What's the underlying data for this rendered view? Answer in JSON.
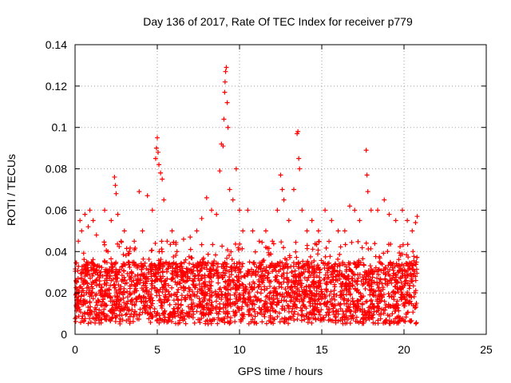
{
  "chart_data": {
    "type": "scatter",
    "title": "Day 136 of 2017, Rate Of TEC Index for receiver p779",
    "xlabel": "GPS time / hours",
    "ylabel": "ROTI / TECUs",
    "xlim": [
      0,
      25
    ],
    "ylim": [
      0,
      0.14
    ],
    "x_ticks": [
      0,
      5,
      10,
      15,
      20,
      25
    ],
    "x_tick_labels": [
      "0",
      "5",
      "10",
      "15",
      "20",
      "25"
    ],
    "y_ticks": [
      0,
      0.02,
      0.04,
      0.06,
      0.08,
      0.1,
      0.12,
      0.14
    ],
    "y_tick_labels": [
      "0",
      "0.02",
      "0.04",
      "0.06",
      "0.08",
      "0.1",
      "0.12",
      "0.14"
    ],
    "grid": true,
    "marker": "plus",
    "color": "#ff0000",
    "series": [
      {
        "points": [
          [
            0.1,
            0.02
          ],
          [
            0.2,
            0.045
          ],
          [
            0.3,
            0.055
          ],
          [
            0.4,
            0.05
          ],
          [
            0.5,
            0.03
          ],
          [
            0.6,
            0.058
          ],
          [
            0.7,
            0.02
          ],
          [
            0.8,
            0.052
          ],
          [
            0.9,
            0.06
          ],
          [
            1.0,
            0.035
          ],
          [
            1.1,
            0.055
          ],
          [
            1.3,
            0.048
          ],
          [
            1.5,
            0.03
          ],
          [
            1.8,
            0.06
          ],
          [
            2.0,
            0.04
          ],
          [
            2.2,
            0.055
          ],
          [
            2.4,
            0.076
          ],
          [
            2.45,
            0.072
          ],
          [
            2.5,
            0.068
          ],
          [
            2.6,
            0.058
          ],
          [
            2.8,
            0.045
          ],
          [
            3.0,
            0.05
          ],
          [
            3.3,
            0.04
          ],
          [
            3.6,
            0.045
          ],
          [
            3.9,
            0.069
          ],
          [
            4.1,
            0.05
          ],
          [
            4.4,
            0.067
          ],
          [
            4.7,
            0.06
          ],
          [
            4.9,
            0.085
          ],
          [
            4.95,
            0.09
          ],
          [
            5.0,
            0.095
          ],
          [
            5.05,
            0.088
          ],
          [
            5.1,
            0.082
          ],
          [
            5.2,
            0.078
          ],
          [
            5.3,
            0.075
          ],
          [
            5.4,
            0.065
          ],
          [
            5.6,
            0.045
          ],
          [
            5.9,
            0.05
          ],
          [
            6.2,
            0.04
          ],
          [
            6.6,
            0.046
          ],
          [
            7.0,
            0.047
          ],
          [
            7.4,
            0.05
          ],
          [
            7.7,
            0.056
          ],
          [
            8.0,
            0.066
          ],
          [
            8.3,
            0.06
          ],
          [
            8.6,
            0.058
          ],
          [
            8.8,
            0.079
          ],
          [
            8.9,
            0.092
          ],
          [
            9.0,
            0.091
          ],
          [
            9.05,
            0.104
          ],
          [
            9.1,
            0.117
          ],
          [
            9.12,
            0.122
          ],
          [
            9.15,
            0.127
          ],
          [
            9.2,
            0.129
          ],
          [
            9.25,
            0.112
          ],
          [
            9.3,
            0.1
          ],
          [
            9.4,
            0.07
          ],
          [
            9.6,
            0.065
          ],
          [
            9.8,
            0.08
          ],
          [
            10.0,
            0.06
          ],
          [
            10.2,
            0.05
          ],
          [
            10.5,
            0.06
          ],
          [
            10.8,
            0.05
          ],
          [
            11.2,
            0.045
          ],
          [
            11.6,
            0.05
          ],
          [
            12.0,
            0.045
          ],
          [
            12.3,
            0.06
          ],
          [
            12.5,
            0.077
          ],
          [
            12.6,
            0.07
          ],
          [
            12.7,
            0.065
          ],
          [
            13.0,
            0.055
          ],
          [
            13.3,
            0.07
          ],
          [
            13.5,
            0.097
          ],
          [
            13.55,
            0.098
          ],
          [
            13.6,
            0.085
          ],
          [
            13.65,
            0.08
          ],
          [
            13.8,
            0.06
          ],
          [
            14.1,
            0.05
          ],
          [
            14.4,
            0.055
          ],
          [
            14.8,
            0.05
          ],
          [
            15.2,
            0.06
          ],
          [
            15.6,
            0.055
          ],
          [
            16.0,
            0.05
          ],
          [
            16.4,
            0.05
          ],
          [
            16.7,
            0.062
          ],
          [
            17.0,
            0.06
          ],
          [
            17.3,
            0.055
          ],
          [
            17.7,
            0.089
          ],
          [
            17.75,
            0.077
          ],
          [
            17.8,
            0.069
          ],
          [
            18.0,
            0.06
          ],
          [
            18.4,
            0.06
          ],
          [
            18.8,
            0.065
          ],
          [
            19.1,
            0.058
          ],
          [
            19.5,
            0.055
          ],
          [
            19.9,
            0.06
          ],
          [
            20.2,
            0.055
          ],
          [
            20.5,
            0.05
          ],
          [
            20.7,
            0.054
          ],
          [
            20.8,
            0.057
          ]
        ]
      }
    ],
    "dense_band": {
      "x_range": [
        0,
        20.8
      ],
      "y_range": [
        0.005,
        0.045
      ],
      "typical_upper": 0.035
    }
  }
}
